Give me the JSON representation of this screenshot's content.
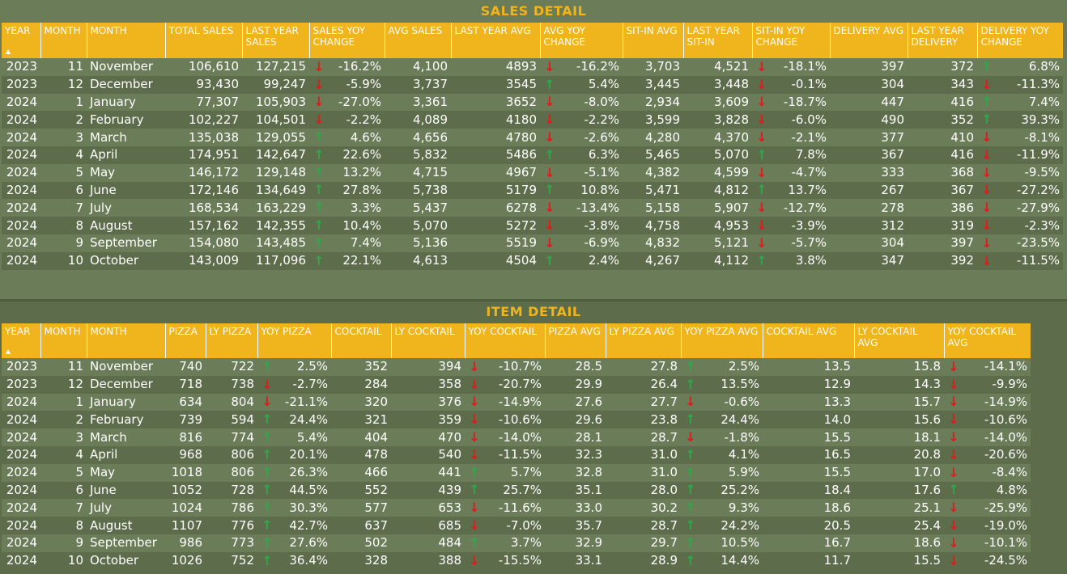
{
  "colors": {
    "header_bg": "#f0b41c",
    "title": "#f0b41c",
    "up": "#2fa84a",
    "down": "#e01b1b",
    "row_light": "#6b7c58",
    "row_dark": "#5d6c4a"
  },
  "icons": {
    "up": "arrow-up-icon",
    "down": "arrow-down-icon",
    "sort": "sort-ascending-icon"
  },
  "sales": {
    "title": "SALES DETAIL",
    "columns": [
      "YEAR",
      "MONTH",
      "MONTH",
      "TOTAL SALES",
      "LAST YEAR SALES",
      "SALES YOY CHANGE",
      "AVG SALES",
      "LAST YEAR AVG",
      "AVG YOY CHANGE",
      "SIT-IN AVG",
      "LAST YEAR SIT-IN",
      "SIT-IN YOY CHANGE",
      "DELIVERY AVG",
      "LAST YEAR DELIVERY",
      "DELIVERY YOY CHANGE"
    ],
    "rows": [
      [
        "2023",
        "11",
        "November",
        "106,610",
        "127,215",
        {
          "dir": "down",
          "v": "-16.2%"
        },
        "4,100",
        "4893",
        {
          "dir": "down",
          "v": "-16.2%"
        },
        "3,703",
        "4,521",
        {
          "dir": "down",
          "v": "-18.1%"
        },
        "397",
        "372",
        {
          "dir": "up",
          "v": "6.8%"
        }
      ],
      [
        "2023",
        "12",
        "December",
        "93,430",
        "99,247",
        {
          "dir": "down",
          "v": "-5.9%"
        },
        "3,737",
        "3545",
        {
          "dir": "up",
          "v": "5.4%"
        },
        "3,445",
        "3,448",
        {
          "dir": "down",
          "v": "-0.1%"
        },
        "304",
        "343",
        {
          "dir": "down",
          "v": "-11.3%"
        }
      ],
      [
        "2024",
        "1",
        "January",
        "77,307",
        "105,903",
        {
          "dir": "down",
          "v": "-27.0%"
        },
        "3,361",
        "3652",
        {
          "dir": "down",
          "v": "-8.0%"
        },
        "2,934",
        "3,609",
        {
          "dir": "down",
          "v": "-18.7%"
        },
        "447",
        "416",
        {
          "dir": "up",
          "v": "7.4%"
        }
      ],
      [
        "2024",
        "2",
        "February",
        "102,227",
        "104,501",
        {
          "dir": "down",
          "v": "-2.2%"
        },
        "4,089",
        "4180",
        {
          "dir": "down",
          "v": "-2.2%"
        },
        "3,599",
        "3,828",
        {
          "dir": "down",
          "v": "-6.0%"
        },
        "490",
        "352",
        {
          "dir": "up",
          "v": "39.3%"
        }
      ],
      [
        "2024",
        "3",
        "March",
        "135,038",
        "129,055",
        {
          "dir": "up",
          "v": "4.6%"
        },
        "4,656",
        "4780",
        {
          "dir": "down",
          "v": "-2.6%"
        },
        "4,280",
        "4,370",
        {
          "dir": "down",
          "v": "-2.1%"
        },
        "377",
        "410",
        {
          "dir": "down",
          "v": "-8.1%"
        }
      ],
      [
        "2024",
        "4",
        "April",
        "174,951",
        "142,647",
        {
          "dir": "up",
          "v": "22.6%"
        },
        "5,832",
        "5486",
        {
          "dir": "up",
          "v": "6.3%"
        },
        "5,465",
        "5,070",
        {
          "dir": "up",
          "v": "7.8%"
        },
        "367",
        "416",
        {
          "dir": "down",
          "v": "-11.9%"
        }
      ],
      [
        "2024",
        "5",
        "May",
        "146,172",
        "129,148",
        {
          "dir": "up",
          "v": "13.2%"
        },
        "4,715",
        "4967",
        {
          "dir": "down",
          "v": "-5.1%"
        },
        "4,382",
        "4,599",
        {
          "dir": "down",
          "v": "-4.7%"
        },
        "333",
        "368",
        {
          "dir": "down",
          "v": "-9.5%"
        }
      ],
      [
        "2024",
        "6",
        "June",
        "172,146",
        "134,649",
        {
          "dir": "up",
          "v": "27.8%"
        },
        "5,738",
        "5179",
        {
          "dir": "up",
          "v": "10.8%"
        },
        "5,471",
        "4,812",
        {
          "dir": "up",
          "v": "13.7%"
        },
        "267",
        "367",
        {
          "dir": "down",
          "v": "-27.2%"
        }
      ],
      [
        "2024",
        "7",
        "July",
        "168,534",
        "163,229",
        {
          "dir": "up",
          "v": "3.3%"
        },
        "5,437",
        "6278",
        {
          "dir": "down",
          "v": "-13.4%"
        },
        "5,158",
        "5,907",
        {
          "dir": "down",
          "v": "-12.7%"
        },
        "278",
        "386",
        {
          "dir": "down",
          "v": "-27.9%"
        }
      ],
      [
        "2024",
        "8",
        "August",
        "157,162",
        "142,355",
        {
          "dir": "up",
          "v": "10.4%"
        },
        "5,070",
        "5272",
        {
          "dir": "down",
          "v": "-3.8%"
        },
        "4,758",
        "4,953",
        {
          "dir": "down",
          "v": "-3.9%"
        },
        "312",
        "319",
        {
          "dir": "down",
          "v": "-2.3%"
        }
      ],
      [
        "2024",
        "9",
        "September",
        "154,080",
        "143,485",
        {
          "dir": "up",
          "v": "7.4%"
        },
        "5,136",
        "5519",
        {
          "dir": "down",
          "v": "-6.9%"
        },
        "4,832",
        "5,121",
        {
          "dir": "down",
          "v": "-5.7%"
        },
        "304",
        "397",
        {
          "dir": "down",
          "v": "-23.5%"
        }
      ],
      [
        "2024",
        "10",
        "October",
        "143,009",
        "117,096",
        {
          "dir": "up",
          "v": "22.1%"
        },
        "4,613",
        "4504",
        {
          "dir": "up",
          "v": "2.4%"
        },
        "4,267",
        "4,112",
        {
          "dir": "up",
          "v": "3.8%"
        },
        "347",
        "392",
        {
          "dir": "down",
          "v": "-11.5%"
        }
      ]
    ]
  },
  "items": {
    "title": "ITEM DETAIL",
    "columns": [
      "YEAR",
      "MONTH",
      "MONTH",
      "PIZZA",
      "LY PIZZA",
      "YOY PIZZA",
      "COCKTAIL",
      "LY COCKTAIL",
      "YOY COCKTAIL",
      "PIZZA AVG",
      "LY PIZZA AVG",
      "YOY PIZZA AVG",
      "COCKTAIL AVG",
      "LY COCKTAIL AVG",
      "YOY COCKTAIL AVG"
    ],
    "rows": [
      [
        "2023",
        "11",
        "November",
        "740",
        "722",
        {
          "dir": "up",
          "v": "2.5%"
        },
        "352",
        "394",
        {
          "dir": "down",
          "v": "-10.7%"
        },
        "28.5",
        "27.8",
        {
          "dir": "up",
          "v": "2.5%"
        },
        "13.5",
        "15.8",
        {
          "dir": "down",
          "v": "-14.1%"
        }
      ],
      [
        "2023",
        "12",
        "December",
        "718",
        "738",
        {
          "dir": "down",
          "v": "-2.7%"
        },
        "284",
        "358",
        {
          "dir": "down",
          "v": "-20.7%"
        },
        "29.9",
        "26.4",
        {
          "dir": "up",
          "v": "13.5%"
        },
        "12.9",
        "14.3",
        {
          "dir": "down",
          "v": "-9.9%"
        }
      ],
      [
        "2024",
        "1",
        "January",
        "634",
        "804",
        {
          "dir": "down",
          "v": "-21.1%"
        },
        "320",
        "376",
        {
          "dir": "down",
          "v": "-14.9%"
        },
        "27.6",
        "27.7",
        {
          "dir": "down",
          "v": "-0.6%"
        },
        "13.3",
        "15.7",
        {
          "dir": "down",
          "v": "-14.9%"
        }
      ],
      [
        "2024",
        "2",
        "February",
        "739",
        "594",
        {
          "dir": "up",
          "v": "24.4%"
        },
        "321",
        "359",
        {
          "dir": "down",
          "v": "-10.6%"
        },
        "29.6",
        "23.8",
        {
          "dir": "up",
          "v": "24.4%"
        },
        "14.0",
        "15.6",
        {
          "dir": "down",
          "v": "-10.6%"
        }
      ],
      [
        "2024",
        "3",
        "March",
        "816",
        "774",
        {
          "dir": "up",
          "v": "5.4%"
        },
        "404",
        "470",
        {
          "dir": "down",
          "v": "-14.0%"
        },
        "28.1",
        "28.7",
        {
          "dir": "down",
          "v": "-1.8%"
        },
        "15.5",
        "18.1",
        {
          "dir": "down",
          "v": "-14.0%"
        }
      ],
      [
        "2024",
        "4",
        "April",
        "968",
        "806",
        {
          "dir": "up",
          "v": "20.1%"
        },
        "478",
        "540",
        {
          "dir": "down",
          "v": "-11.5%"
        },
        "32.3",
        "31.0",
        {
          "dir": "up",
          "v": "4.1%"
        },
        "16.5",
        "20.8",
        {
          "dir": "down",
          "v": "-20.6%"
        }
      ],
      [
        "2024",
        "5",
        "May",
        "1018",
        "806",
        {
          "dir": "up",
          "v": "26.3%"
        },
        "466",
        "441",
        {
          "dir": "up",
          "v": "5.7%"
        },
        "32.8",
        "31.0",
        {
          "dir": "up",
          "v": "5.9%"
        },
        "15.5",
        "17.0",
        {
          "dir": "down",
          "v": "-8.4%"
        }
      ],
      [
        "2024",
        "6",
        "June",
        "1052",
        "728",
        {
          "dir": "up",
          "v": "44.5%"
        },
        "552",
        "439",
        {
          "dir": "up",
          "v": "25.7%"
        },
        "35.1",
        "28.0",
        {
          "dir": "up",
          "v": "25.2%"
        },
        "18.4",
        "17.6",
        {
          "dir": "up",
          "v": "4.8%"
        }
      ],
      [
        "2024",
        "7",
        "July",
        "1024",
        "786",
        {
          "dir": "up",
          "v": "30.3%"
        },
        "577",
        "653",
        {
          "dir": "down",
          "v": "-11.6%"
        },
        "33.0",
        "30.2",
        {
          "dir": "up",
          "v": "9.3%"
        },
        "18.6",
        "25.1",
        {
          "dir": "down",
          "v": "-25.9%"
        }
      ],
      [
        "2024",
        "8",
        "August",
        "1107",
        "776",
        {
          "dir": "up",
          "v": "42.7%"
        },
        "637",
        "685",
        {
          "dir": "down",
          "v": "-7.0%"
        },
        "35.7",
        "28.7",
        {
          "dir": "up",
          "v": "24.2%"
        },
        "20.5",
        "25.4",
        {
          "dir": "down",
          "v": "-19.0%"
        }
      ],
      [
        "2024",
        "9",
        "September",
        "986",
        "773",
        {
          "dir": "up",
          "v": "27.6%"
        },
        "502",
        "484",
        {
          "dir": "up",
          "v": "3.7%"
        },
        "32.9",
        "29.7",
        {
          "dir": "up",
          "v": "10.5%"
        },
        "16.7",
        "18.6",
        {
          "dir": "down",
          "v": "-10.1%"
        }
      ],
      [
        "2024",
        "10",
        "October",
        "1026",
        "752",
        {
          "dir": "up",
          "v": "36.4%"
        },
        "328",
        "388",
        {
          "dir": "down",
          "v": "-15.5%"
        },
        "33.1",
        "28.9",
        {
          "dir": "up",
          "v": "14.4%"
        },
        "11.7",
        "15.5",
        {
          "dir": "down",
          "v": "-24.5%"
        }
      ]
    ]
  }
}
